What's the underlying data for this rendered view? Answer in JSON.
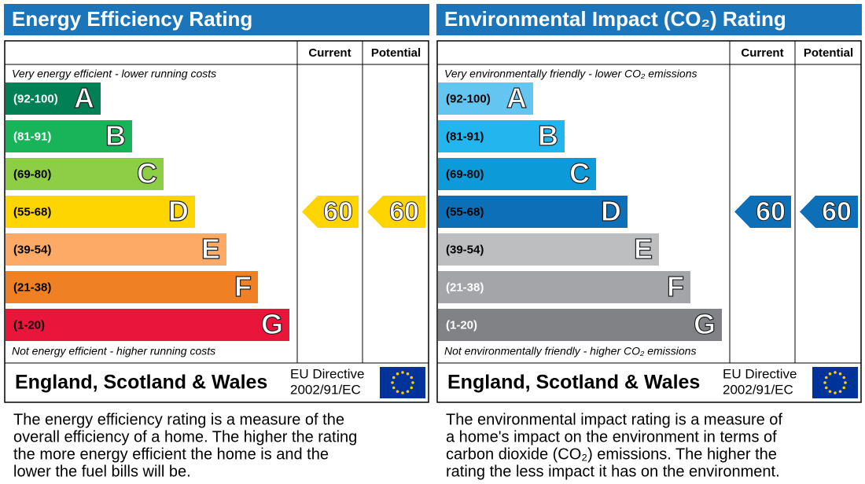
{
  "panels": [
    {
      "title": "Energy Efficiency Rating",
      "headers": [
        "Current",
        "Potential"
      ],
      "top_note": "Very energy efficient - lower running costs",
      "bottom_note": "Not energy efficient - higher running costs",
      "bands": [
        {
          "range": "(92-100)",
          "letter": "A",
          "color": "#008054",
          "label_color": "#ffffff"
        },
        {
          "range": "(81-91)",
          "letter": "B",
          "color": "#19b459",
          "label_color": "#ffffff"
        },
        {
          "range": "(69-80)",
          "letter": "C",
          "color": "#8dce46",
          "label_color": "#000000"
        },
        {
          "range": "(55-68)",
          "letter": "D",
          "color": "#ffd500",
          "label_color": "#000000"
        },
        {
          "range": "(39-54)",
          "letter": "E",
          "color": "#fcaa65",
          "label_color": "#000000"
        },
        {
          "range": "(21-38)",
          "letter": "F",
          "color": "#ef8023",
          "label_color": "#000000"
        },
        {
          "range": "(1-20)",
          "letter": "G",
          "color": "#e9153b",
          "label_color": "#000000"
        }
      ],
      "current": 60,
      "potential": 60,
      "footer": "England, Scotland & Wales",
      "directive": [
        "EU Directive",
        "2002/91/EC"
      ],
      "description": [
        "The energy efficiency rating is a measure of the",
        "overall efficiency of a home. The higher the rating",
        "the more energy efficient the home is and the",
        "lower the fuel bills will be."
      ]
    },
    {
      "title": "Environmental Impact (CO₂) Rating",
      "headers": [
        "Current",
        "Potential"
      ],
      "top_note": "Very environmentally friendly - lower CO₂ emissions",
      "bottom_note": "Not environmentally friendly - higher CO₂ emissions",
      "bands": [
        {
          "range": "(92-100)",
          "letter": "A",
          "color": "#63c5f0",
          "label_color": "#000000"
        },
        {
          "range": "(81-91)",
          "letter": "B",
          "color": "#22b5ee",
          "label_color": "#000000"
        },
        {
          "range": "(69-80)",
          "letter": "C",
          "color": "#0d9ad8",
          "label_color": "#000000"
        },
        {
          "range": "(55-68)",
          "letter": "D",
          "color": "#0c6fb8",
          "label_color": "#000000"
        },
        {
          "range": "(39-54)",
          "letter": "E",
          "color": "#bcbec0",
          "label_color": "#000000"
        },
        {
          "range": "(21-38)",
          "letter": "F",
          "color": "#a3a5a8",
          "label_color": "#ffffff"
        },
        {
          "range": "(1-20)",
          "letter": "G",
          "color": "#808285",
          "label_color": "#ffffff"
        }
      ],
      "current": 60,
      "potential": 60,
      "footer": "England, Scotland & Wales",
      "directive": [
        "EU Directive",
        "2002/91/EC"
      ],
      "description": [
        "The environmental impact rating is a measure of",
        "a home's impact on the environment in terms of",
        "carbon dioxide (CO₂) emissions. The higher the",
        "rating the less impact it has on the environment."
      ]
    }
  ]
}
